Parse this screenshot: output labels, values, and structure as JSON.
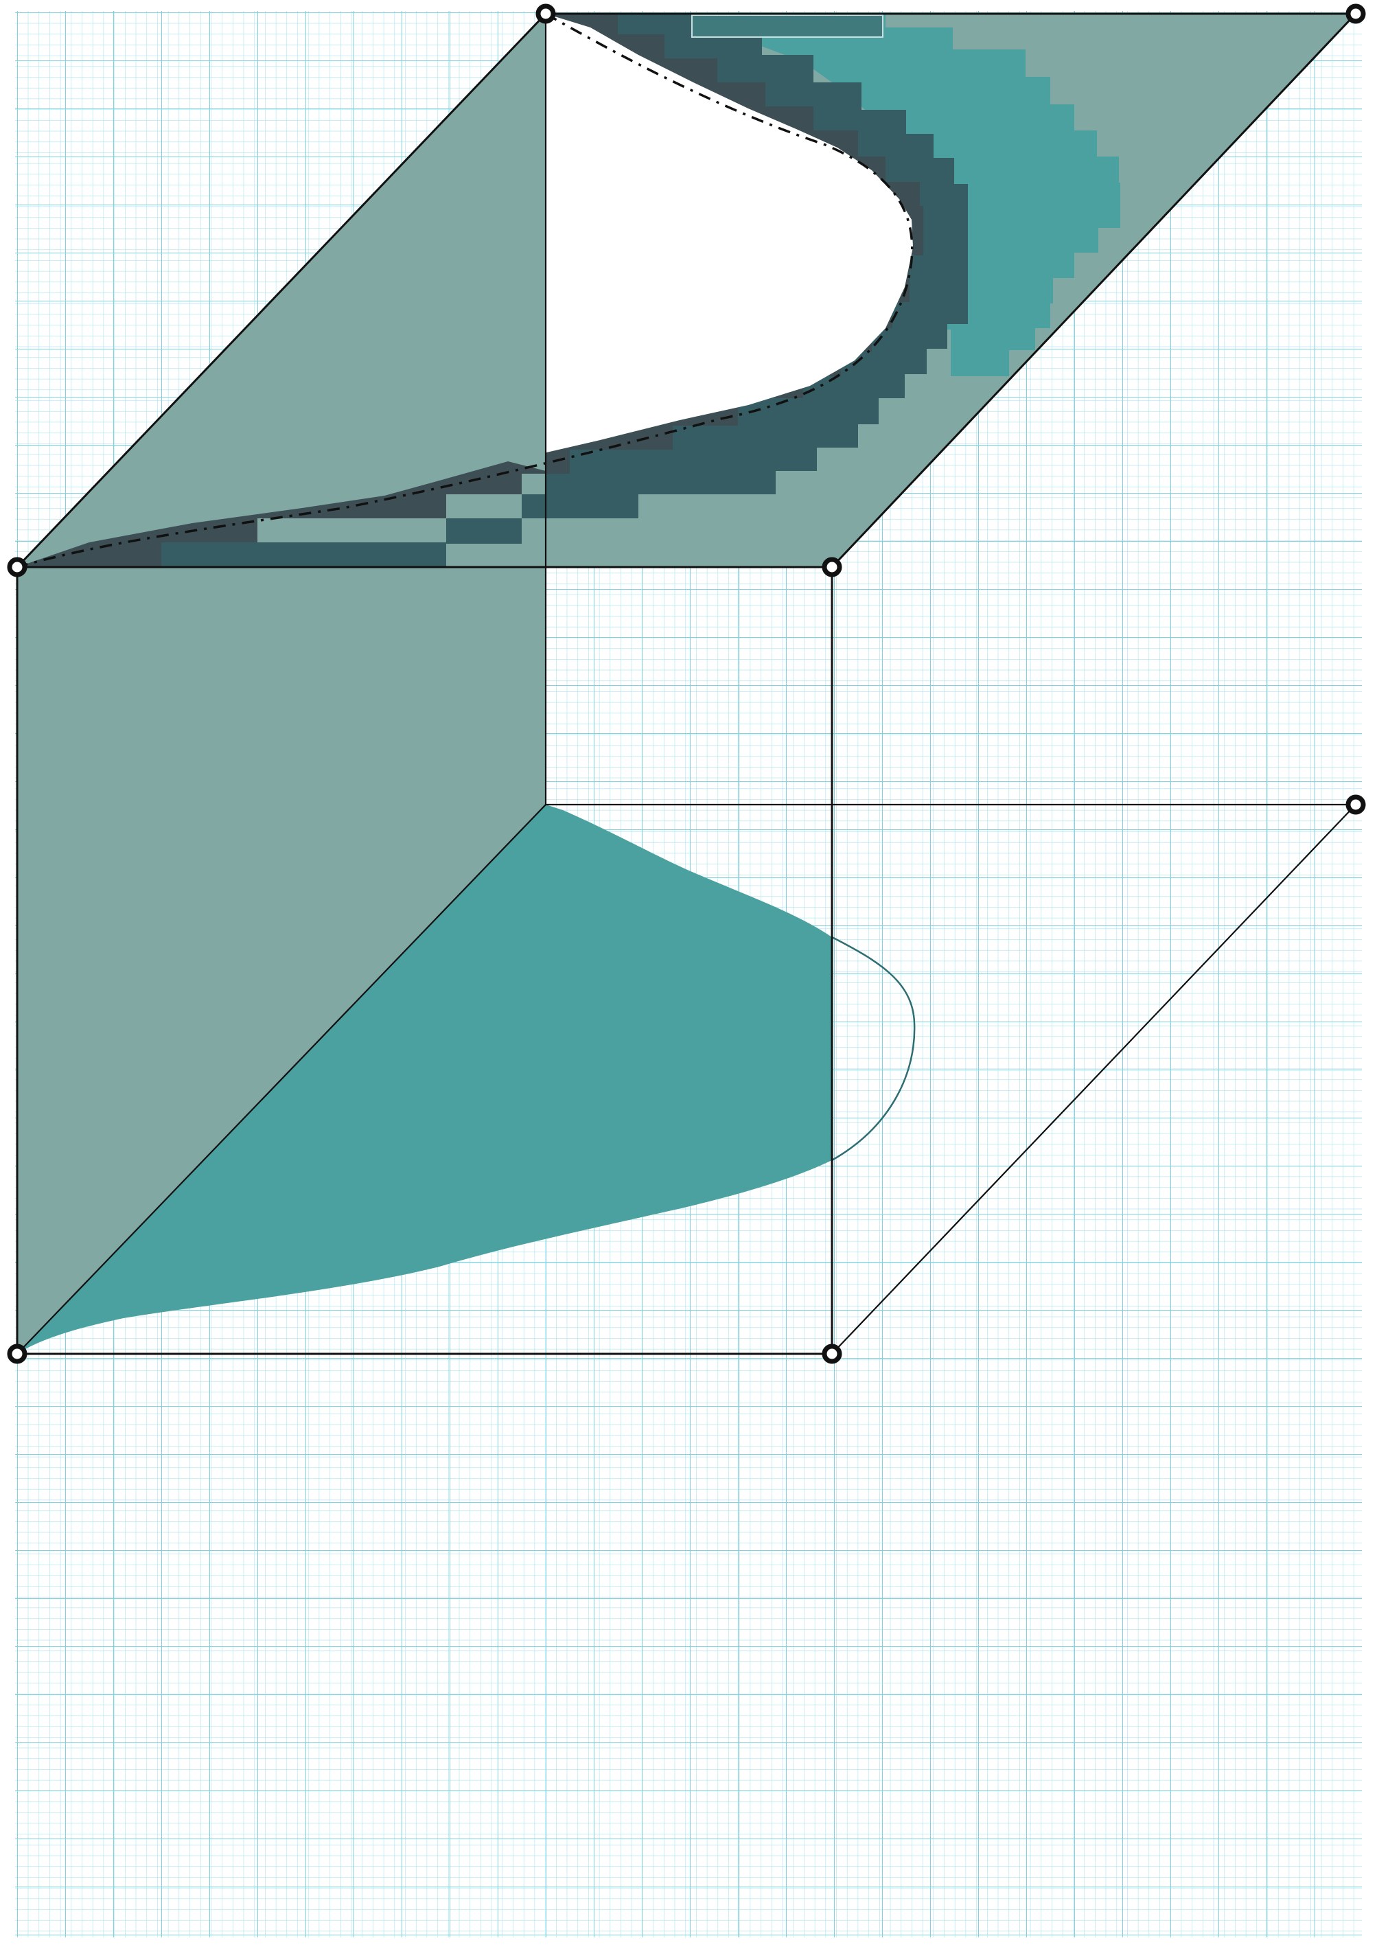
{
  "diagram": {
    "kind": "isometric box sketch on graph paper",
    "vertex_count": 8,
    "colors": {
      "paper": "#ffffff",
      "grid_minor": "#9fe1ea",
      "grid_major": "#6fcfdc",
      "face_gray": "#82a8a4",
      "teal": "#4ba1a0",
      "dark_slate": "#365d64",
      "darkest_slate": "#3d4f55",
      "edge": "#111111"
    },
    "icons": [
      "vertex-marker-icon"
    ]
  }
}
